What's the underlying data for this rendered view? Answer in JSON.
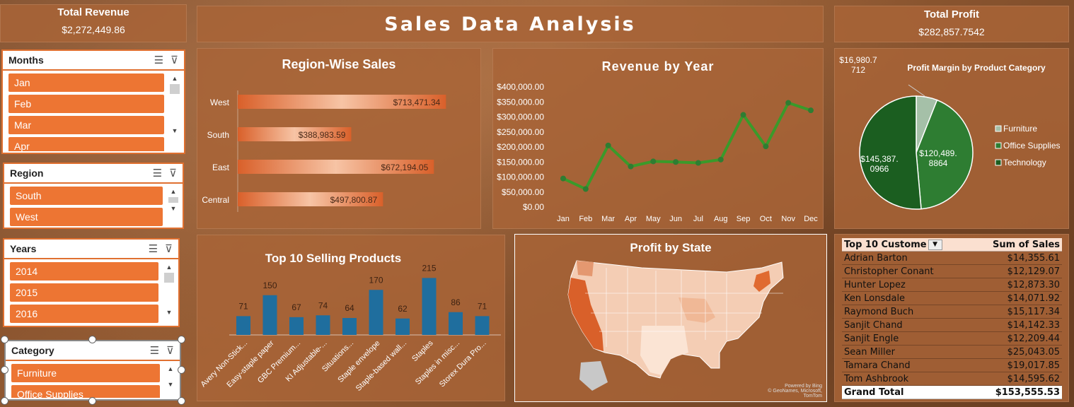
{
  "kpis": {
    "revenue_title": "Total Revenue",
    "revenue_value": "$2,272,449.86",
    "profit_title": "Total Profit",
    "profit_value": "$282,857.7542"
  },
  "dashboard_title": "Sales Data Analysis",
  "slicers": {
    "months": {
      "title": "Months",
      "items": [
        "Jan",
        "Feb",
        "Mar",
        "Apr"
      ]
    },
    "region": {
      "title": "Region",
      "items": [
        "South",
        "West"
      ]
    },
    "years": {
      "title": "Years",
      "items": [
        "2014",
        "2015",
        "2016"
      ]
    },
    "category": {
      "title": "Category",
      "items": [
        "Furniture",
        "Office Supplies"
      ]
    }
  },
  "icons": {
    "multiselect": "multi-select-icon",
    "clearfilter": "clear-filter-icon"
  },
  "colors": {
    "accent": "#ed7533",
    "panel": "#a86437",
    "line": "#3a9a2a",
    "bar_blue": "#1f6e9e",
    "pie_dark": "#1b5e20",
    "pie_mid": "#2e7d32",
    "pie_light": "#a5c0a8"
  },
  "charts": {
    "region": {
      "title": "Region-Wise Sales",
      "chart_data": {
        "type": "bar",
        "orientation": "horizontal",
        "categories": [
          "West",
          "South",
          "East",
          "Central"
        ],
        "values": [
          713471.34,
          388983.59,
          672194.05,
          497800.87
        ],
        "labels": [
          "$713,471.34",
          "$388,983.59",
          "$672,194.05",
          "$497,800.87"
        ]
      }
    },
    "revenue": {
      "title": "Revenue by Year",
      "chart_data": {
        "type": "line",
        "categories": [
          "Jan",
          "Feb",
          "Mar",
          "Apr",
          "May",
          "Jun",
          "Jul",
          "Aug",
          "Sep",
          "Oct",
          "Nov",
          "Dec"
        ],
        "values": [
          95000,
          60000,
          205000,
          135000,
          152000,
          150000,
          147000,
          158000,
          307000,
          202000,
          347000,
          322000
        ],
        "ylim": [
          0,
          400000
        ],
        "yticks": [
          "$0.00",
          "$50,000.00",
          "$100,000.00",
          "$150,000.00",
          "$200,000.00",
          "$250,000.00",
          "$300,000.00",
          "$350,000.00",
          "$400,000.00"
        ]
      }
    },
    "profit_pie": {
      "title": "Profit Margin by Product Category",
      "chart_data": {
        "type": "pie",
        "categories": [
          "Furniture",
          "Office Supplies",
          "Technology"
        ],
        "values": [
          16980.7712,
          120489.8864,
          145387.0966
        ],
        "labels": [
          "$16,980.7\n712",
          "$120,489.\n8864",
          "$145,387.\n0966"
        ]
      }
    },
    "products": {
      "title": "Top 10 Selling Products",
      "chart_data": {
        "type": "bar",
        "categories": [
          "Avery Non-Stick...",
          "Easy-staple paper",
          "GBC Premium...",
          "KI Adjustable-...",
          "Situations...",
          "Staple envelope",
          "Staple-based wall...",
          "Staples",
          "Staples in misc...",
          "Storex Dura Pro..."
        ],
        "values": [
          71,
          150,
          67,
          74,
          64,
          170,
          62,
          215,
          86,
          71
        ]
      }
    },
    "state": {
      "title": "Profit by State",
      "attribution_1": "Powered by Bing",
      "attribution_2": "© GeoNames, Microsoft, TomTom"
    }
  },
  "customers": {
    "header_name": "Top 10 Custome",
    "header_sales": "Sum of Sales",
    "rows": [
      {
        "name": "Adrian Barton",
        "sales": "$14,355.61"
      },
      {
        "name": "Christopher Conant",
        "sales": "$12,129.07"
      },
      {
        "name": "Hunter Lopez",
        "sales": "$12,873.30"
      },
      {
        "name": "Ken Lonsdale",
        "sales": "$14,071.92"
      },
      {
        "name": "Raymond Buch",
        "sales": "$15,117.34"
      },
      {
        "name": "Sanjit Chand",
        "sales": "$14,142.33"
      },
      {
        "name": "Sanjit Engle",
        "sales": "$12,209.44"
      },
      {
        "name": "Sean Miller",
        "sales": "$25,043.05"
      },
      {
        "name": "Tamara Chand",
        "sales": "$19,017.85"
      },
      {
        "name": "Tom Ashbrook",
        "sales": "$14,595.62"
      }
    ],
    "total_label": "Grand Total",
    "total_value": "$153,555.53"
  }
}
